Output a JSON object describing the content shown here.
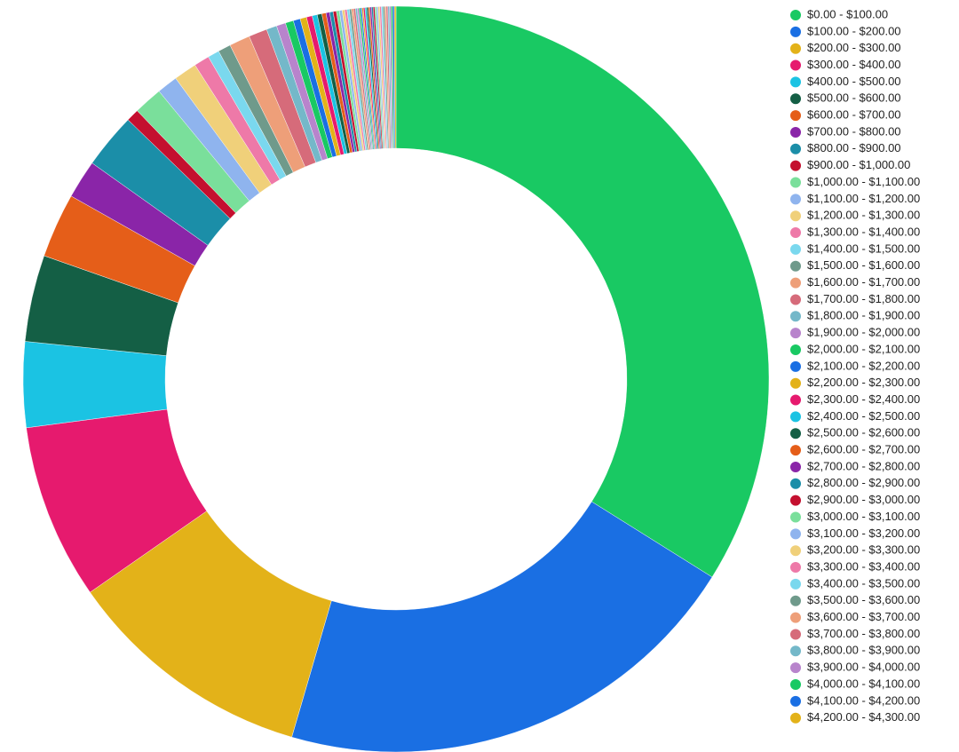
{
  "chart_data": {
    "type": "donut",
    "categories": [
      "$0.00 - $100.00",
      "$100.00 - $200.00",
      "$200.00 - $300.00",
      "$300.00 - $400.00",
      "$400.00 - $500.00",
      "$500.00 - $600.00",
      "$600.00 - $700.00",
      "$700.00 - $800.00",
      "$800.00 - $900.00",
      "$900.00 - $1,000.00",
      "$1,000.00 - $1,100.00",
      "$1,100.00 - $1,200.00",
      "$1,200.00 - $1,300.00",
      "$1,300.00 - $1,400.00",
      "$1,400.00 - $1,500.00",
      "$1,500.00 - $1,600.00",
      "$1,600.00 - $1,700.00",
      "$1,700.00 - $1,800.00",
      "$1,800.00 - $1,900.00",
      "$1,900.00 - $2,000.00",
      "$2,000.00 - $2,100.00",
      "$2,100.00 - $2,200.00",
      "$2,200.00 - $2,300.00",
      "$2,300.00 - $2,400.00",
      "$2,400.00 - $2,500.00",
      "$2,500.00 - $2,600.00",
      "$2,600.00 - $2,700.00",
      "$2,700.00 - $2,800.00",
      "$2,800.00 - $2,900.00",
      "$2,900.00 - $3,000.00",
      "$3,000.00 - $3,100.00",
      "$3,100.00 - $3,200.00",
      "$3,200.00 - $3,300.00",
      "$3,300.00 - $3,400.00",
      "$3,400.00 - $3,500.00",
      "$3,500.00 - $3,600.00",
      "$3,600.00 - $3,700.00",
      "$3,700.00 - $3,800.00",
      "$3,800.00 - $3,900.00",
      "$3,900.00 - $4,000.00",
      "$4,000.00 - $4,100.00",
      "$4,100.00 - $4,200.00",
      "$4,200.00 - $4,300.00",
      null,
      null,
      null,
      null,
      null,
      null,
      null,
      null,
      null,
      null,
      null,
      null,
      null,
      null,
      null,
      null,
      null,
      null,
      null,
      null
    ],
    "values": [
      33.9,
      20.6,
      10.8,
      7.6,
      3.7,
      3.75,
      2.8,
      1.67,
      2.4,
      0.55,
      1.25,
      0.9,
      1.0,
      0.67,
      0.5,
      0.55,
      0.9,
      0.8,
      0.45,
      0.4,
      0.35,
      0.3,
      0.28,
      0.25,
      0.22,
      0.2,
      0.18,
      0.16,
      0.15,
      0.14,
      0.13,
      0.12,
      0.11,
      0.1,
      0.1,
      0.09,
      0.09,
      0.08,
      0.08,
      0.07,
      0.07,
      0.06,
      0.06,
      0.07,
      0.07,
      0.07,
      0.07,
      0.07,
      0.07,
      0.07,
      0.07,
      0.07,
      0.07,
      0.07,
      0.07,
      0.07,
      0.07,
      0.07,
      0.07,
      0.07,
      0.07,
      0.07,
      0.07
    ],
    "colors": [
      "#19c963",
      "#1a6fe3",
      "#e3b219",
      "#e61a6e",
      "#1bc3e3",
      "#145f45",
      "#e55e19",
      "#8a25a8",
      "#1b8ea8",
      "#c4102f",
      "#7adf9b",
      "#8fb4ee",
      "#f0d07a",
      "#ee79a8",
      "#7ad8ee",
      "#6f9a8b",
      "#ee9f79",
      "#d66b7a",
      "#74b8c9",
      "#b884cc"
    ],
    "legend": "right"
  }
}
